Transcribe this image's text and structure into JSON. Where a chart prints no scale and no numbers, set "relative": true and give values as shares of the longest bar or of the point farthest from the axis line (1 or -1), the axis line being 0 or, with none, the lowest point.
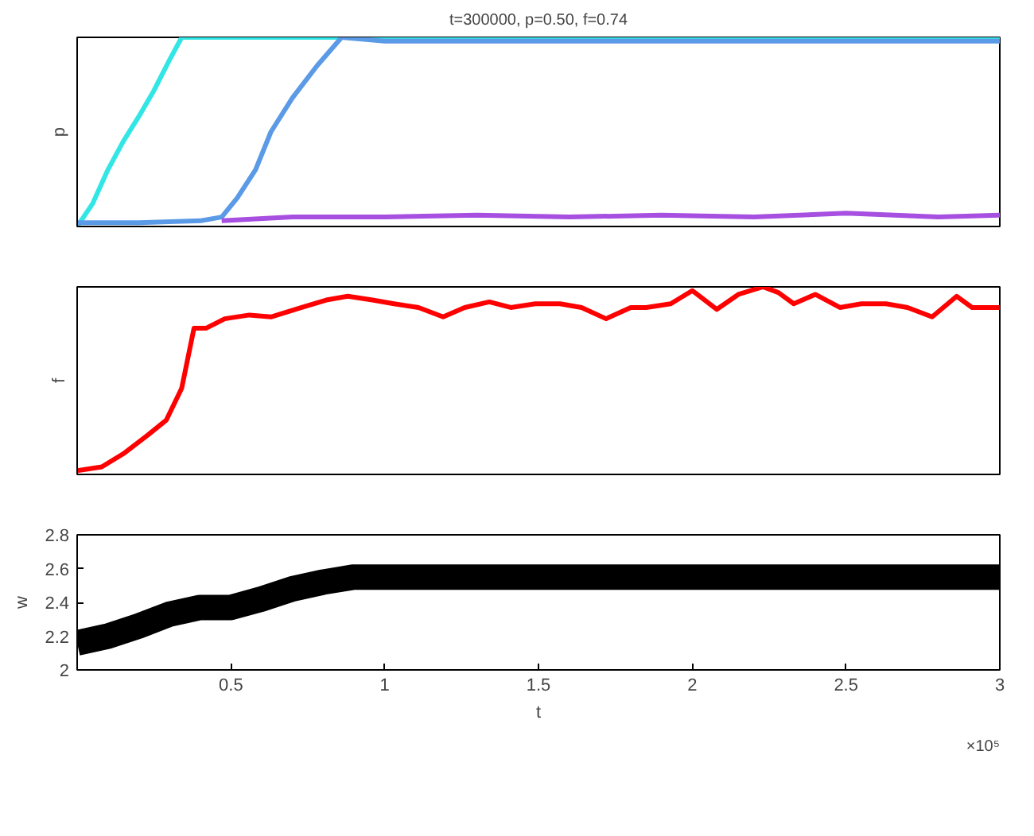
{
  "chart_data": [
    {
      "type": "line",
      "title": "t=300000, p=0.50, f=0.74",
      "ylabel": "p",
      "relative": true,
      "xlim": [
        0,
        3
      ],
      "series": [
        {
          "color": "#33e6e6",
          "x": [
            0,
            0.05,
            0.1,
            0.15,
            0.2,
            0.25,
            0.3,
            0.34,
            0.5,
            1,
            1.5,
            2,
            2.5,
            3
          ],
          "values": [
            0,
            0.12,
            0.3,
            0.45,
            0.58,
            0.72,
            0.88,
            1,
            1,
            1,
            1,
            1,
            1,
            1
          ]
        },
        {
          "color": "#5b9ae6",
          "x": [
            0,
            0.2,
            0.4,
            0.47,
            0.52,
            0.58,
            0.63,
            0.7,
            0.78,
            0.86,
            1,
            1.5,
            2,
            2.5,
            3
          ],
          "values": [
            0.02,
            0.02,
            0.03,
            0.05,
            0.15,
            0.3,
            0.5,
            0.68,
            0.85,
            1,
            0.98,
            0.98,
            0.98,
            0.98,
            0.98
          ]
        },
        {
          "color": "#a64fe0",
          "x": [
            0.47,
            0.7,
            1,
            1.3,
            1.6,
            1.9,
            2.2,
            2.5,
            2.8,
            3
          ],
          "values": [
            0.03,
            0.05,
            0.05,
            0.06,
            0.05,
            0.06,
            0.05,
            0.07,
            0.05,
            0.06
          ]
        }
      ]
    },
    {
      "type": "line",
      "ylabel": "f",
      "relative": true,
      "xlim": [
        0,
        3
      ],
      "series": [
        {
          "color": "#ff0000",
          "x": [
            0,
            0.08,
            0.15,
            0.23,
            0.29,
            0.34,
            0.38,
            0.42,
            0.48,
            0.56,
            0.63,
            0.73,
            0.81,
            0.88,
            0.96,
            1.03,
            1.11,
            1.19,
            1.26,
            1.34,
            1.41,
            1.49,
            1.57,
            1.64,
            1.72,
            1.8,
            1.85,
            1.93,
            2.0,
            2.08,
            2.15,
            2.23,
            2.28,
            2.33,
            2.4,
            2.48,
            2.55,
            2.63,
            2.7,
            2.78,
            2.86,
            2.91,
            2.96,
            3.0
          ],
          "values": [
            0.02,
            0.04,
            0.11,
            0.21,
            0.29,
            0.46,
            0.78,
            0.78,
            0.83,
            0.85,
            0.84,
            0.89,
            0.93,
            0.95,
            0.93,
            0.91,
            0.89,
            0.84,
            0.89,
            0.92,
            0.89,
            0.91,
            0.91,
            0.89,
            0.83,
            0.89,
            0.89,
            0.91,
            0.98,
            0.88,
            0.96,
            1,
            0.97,
            0.91,
            0.96,
            0.89,
            0.91,
            0.91,
            0.89,
            0.84,
            0.95,
            0.89,
            0.89,
            0.89
          ]
        }
      ]
    },
    {
      "type": "line",
      "xlabel": "t",
      "ylabel": "w",
      "xlim": [
        0,
        3
      ],
      "ylim": [
        2,
        2.8
      ],
      "xticks": [
        0.5,
        1,
        1.5,
        2,
        2.5,
        3
      ],
      "yticks": [
        2,
        2.2,
        2.4,
        2.6,
        2.8
      ],
      "annotations": [
        "×10⁵"
      ],
      "series": [
        {
          "color": "#000000",
          "x": [
            0,
            0.1,
            0.2,
            0.3,
            0.4,
            0.5,
            0.6,
            0.7,
            0.8,
            0.9,
            1,
            1.5,
            2,
            2.5,
            3
          ],
          "values": [
            2.16,
            2.2,
            2.26,
            2.33,
            2.37,
            2.37,
            2.42,
            2.48,
            2.52,
            2.55,
            2.55,
            2.55,
            2.55,
            2.55,
            2.55
          ]
        }
      ]
    }
  ]
}
